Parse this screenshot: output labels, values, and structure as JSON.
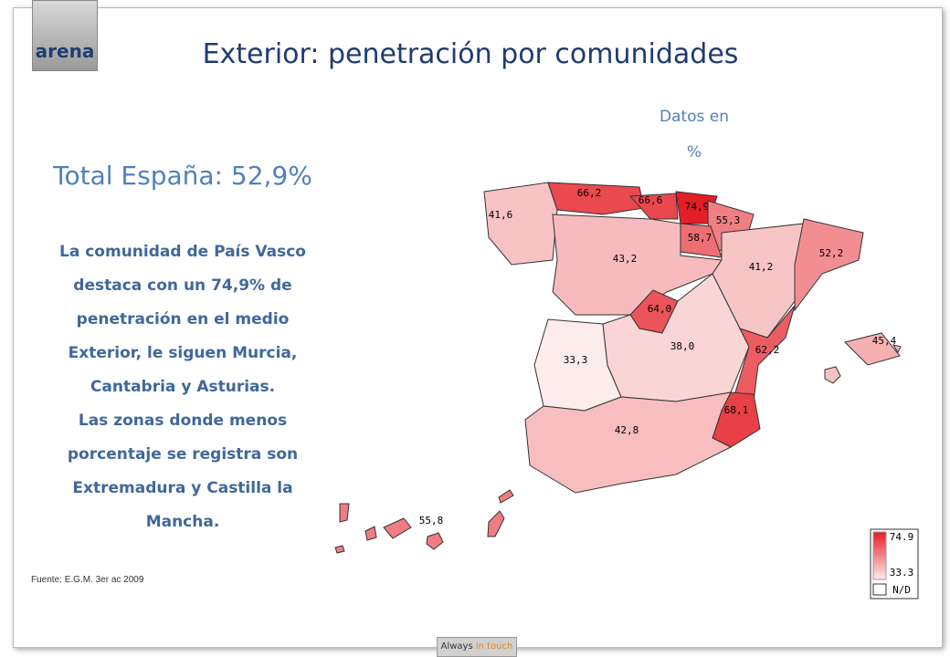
{
  "logo": "arena",
  "title": "Exterior: penetración por comunidades",
  "units_note": [
    "Datos en",
    "%"
  ],
  "total": "Total España: 52,9%",
  "description": [
    "La comunidad de País Vasco destaca con un 74,9% de penetración en el medio Exterior, le siguen Murcia, Cantabria y Asturias.",
    "Las zonas donde menos porcentaje se registra son Extremadura y Castilla la Mancha."
  ],
  "source": "Fuente: E.G.M. 3er ac 2009",
  "footer": [
    "Always",
    "in touch"
  ],
  "map": {
    "regions": [
      {
        "value": 41.6,
        "label": "41,6"
      },
      {
        "value": 66.2,
        "label": "66,2"
      },
      {
        "value": 66.6,
        "label": "66,6"
      },
      {
        "value": 74.9,
        "label": "74,9"
      },
      {
        "value": 55.3,
        "label": "55,3"
      },
      {
        "value": 58.7,
        "label": "58,7"
      },
      {
        "value": 43.2,
        "label": "43,2"
      },
      {
        "value": 41.2,
        "label": "41,2"
      },
      {
        "value": 52.2,
        "label": "52,2"
      },
      {
        "value": 64.0,
        "label": "64,0"
      },
      {
        "value": 33.3,
        "label": "33,3"
      },
      {
        "value": 38.0,
        "label": "38,0"
      },
      {
        "value": 62.2,
        "label": "62,2"
      },
      {
        "value": 45.4,
        "label": "45,4"
      },
      {
        "value": 68.1,
        "label": "68,1"
      },
      {
        "value": 42.8,
        "label": "42,8"
      },
      {
        "value": 55.8,
        "label": "55,8"
      }
    ],
    "legend": {
      "max": 74.9,
      "min": 33.3,
      "missing": "N/D"
    },
    "colors": {
      "low": "#fdecec",
      "high": "#e41e26"
    }
  }
}
